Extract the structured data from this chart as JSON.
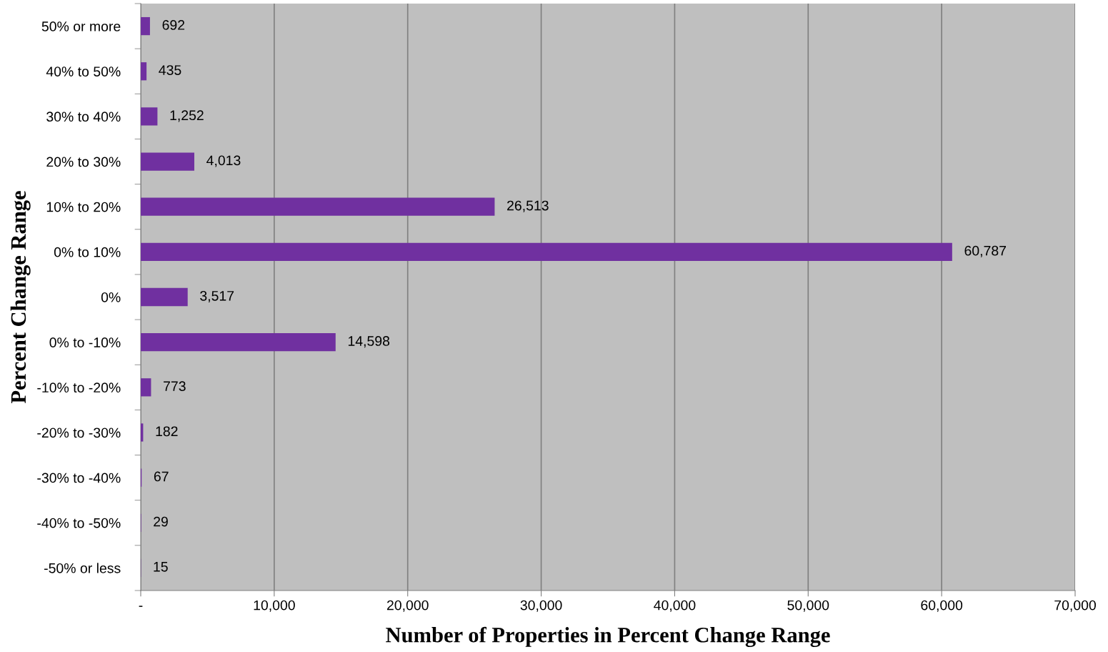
{
  "chart_data": {
    "type": "bar",
    "orientation": "horizontal",
    "xlabel": "Number of Properties in Percent Change Range",
    "ylabel": "Percent Change Range",
    "categories": [
      "50% or more",
      "40% to 50%",
      "30% to 40%",
      "20% to 30%",
      "10% to 20%",
      "0% to 10%",
      "0%",
      "0% to -10%",
      "-10% to -20%",
      "-20% to -30%",
      "-30% to -40%",
      "-40% to -50%",
      "-50% or less"
    ],
    "values": [
      692,
      435,
      1252,
      4013,
      26513,
      60787,
      3517,
      14598,
      773,
      182,
      67,
      29,
      15
    ],
    "value_labels": [
      "692",
      "435",
      "1,252",
      "4,013",
      "26,513",
      "60,787",
      "3,517",
      "14,598",
      "773",
      "182",
      "67",
      "29",
      "15"
    ],
    "color": "#7030a0",
    "xlim": [
      0,
      70000
    ],
    "xticks": [
      {
        "value": 0,
        "label": "-"
      },
      {
        "value": 10000,
        "label": "10,000"
      },
      {
        "value": 20000,
        "label": "20,000"
      },
      {
        "value": 30000,
        "label": "30,000"
      },
      {
        "value": 40000,
        "label": "40,000"
      },
      {
        "value": 50000,
        "label": "50,000"
      },
      {
        "value": 60000,
        "label": "60,000"
      },
      {
        "value": 70000,
        "label": "70,000"
      }
    ],
    "grid": "x",
    "legend": false
  }
}
